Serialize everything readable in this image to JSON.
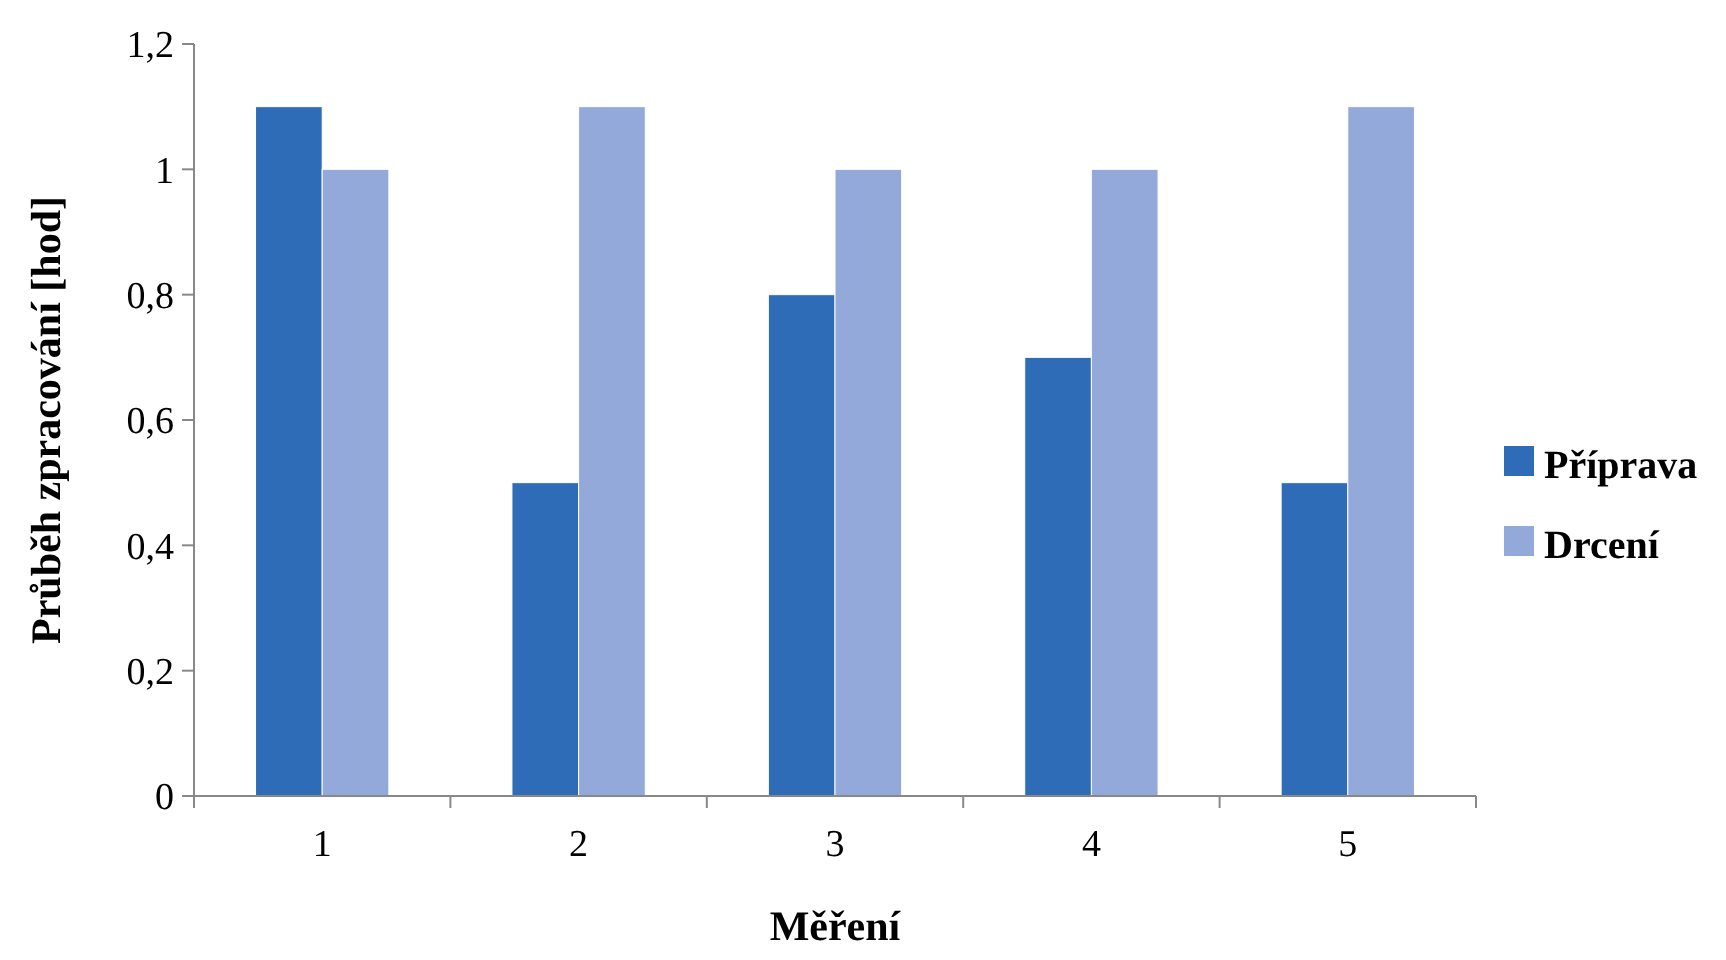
{
  "chart_data": {
    "type": "bar",
    "xlabel": "Měření",
    "ylabel": "Průběh zpracování [hod]",
    "categories": [
      "1",
      "2",
      "3",
      "4",
      "5"
    ],
    "series": [
      {
        "name": "Příprava",
        "color": "#2e6cb8",
        "values": [
          1.1,
          0.5,
          0.8,
          0.7,
          0.5
        ]
      },
      {
        "name": "Drcení",
        "color": "#93a9da",
        "values": [
          1.0,
          1.1,
          1.0,
          1.0,
          1.1
        ]
      }
    ],
    "ylim": [
      0,
      1.2
    ],
    "yticks": [
      0,
      {
        "value": 0.2,
        "label": "0,2"
      },
      {
        "value": 0.4,
        "label": "0,4"
      },
      {
        "value": 0.6,
        "label": "0,6"
      },
      {
        "value": 0.8,
        "label": "0,8"
      },
      1,
      {
        "value": 1.2,
        "label": "1,2"
      }
    ],
    "grid": false,
    "legend": "right"
  }
}
